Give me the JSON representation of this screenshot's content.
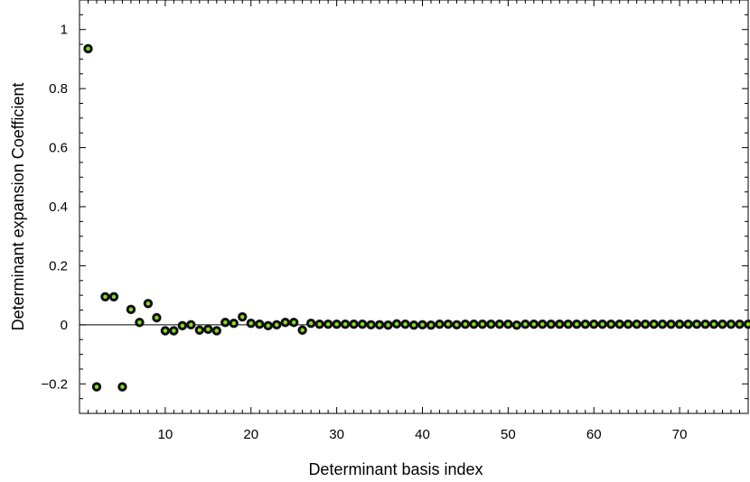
{
  "chart_data": {
    "type": "scatter",
    "title": "",
    "xlabel": "Determinant basis index",
    "ylabel": "Determinant expansion Coefficient",
    "xlim": [
      0,
      78
    ],
    "ylim": [
      -0.3,
      1.1
    ],
    "x_ticks": [
      10,
      20,
      30,
      40,
      50,
      60,
      70
    ],
    "x_tick_labels": [
      "10",
      "20",
      "30",
      "40",
      "50",
      "60",
      "70"
    ],
    "y_ticks": [
      -0.2,
      0,
      0.2,
      0.4,
      0.6,
      0.8,
      1
    ],
    "y_tick_labels": [
      "−0.2",
      "0",
      "0.2",
      "0.4",
      "0.6",
      "0.8",
      "1"
    ],
    "zero_line": true,
    "grid": false,
    "legend": "none",
    "marker_color": "#111111",
    "marker_fill": "#88dd22",
    "x": [
      1,
      2,
      3,
      4,
      5,
      6,
      7,
      8,
      9,
      10,
      11,
      12,
      13,
      14,
      15,
      16,
      17,
      18,
      19,
      20,
      21,
      22,
      23,
      24,
      25,
      26,
      27,
      28,
      29,
      30,
      31,
      32,
      33,
      34,
      35,
      36,
      37,
      38,
      39,
      40,
      41,
      42,
      43,
      44,
      45,
      46,
      47,
      48,
      49,
      50,
      51,
      52,
      53,
      54,
      55,
      56,
      57,
      58,
      59,
      60,
      61,
      62,
      63,
      64,
      65,
      66,
      67,
      68,
      69,
      70,
      71,
      72,
      73,
      74,
      75,
      76,
      77,
      78
    ],
    "values": [
      0.935,
      -0.21,
      0.095,
      0.095,
      -0.21,
      0.052,
      0.008,
      0.072,
      0.024,
      -0.02,
      -0.02,
      -0.003,
      0.0,
      -0.018,
      -0.015,
      -0.02,
      0.008,
      0.005,
      0.027,
      0.005,
      0.002,
      -0.003,
      0.0,
      0.008,
      0.008,
      -0.018,
      0.005,
      0.002,
      0.002,
      0.002,
      0.002,
      0.002,
      0.002,
      0.0,
      0.0,
      -0.001,
      0.003,
      0.002,
      -0.001,
      0.0,
      -0.001,
      0.002,
      0.002,
      0.0,
      0.002,
      0.002,
      0.002,
      0.002,
      0.002,
      0.002,
      -0.001,
      0.002,
      0.002,
      0.002,
      0.002,
      0.002,
      0.002,
      0.002,
      0.002,
      0.002,
      0.002,
      0.002,
      0.002,
      0.002,
      0.002,
      0.002,
      0.002,
      0.002,
      0.002,
      0.002,
      0.002,
      0.002,
      0.002,
      0.002,
      0.002,
      0.002,
      0.002,
      0.002
    ]
  }
}
